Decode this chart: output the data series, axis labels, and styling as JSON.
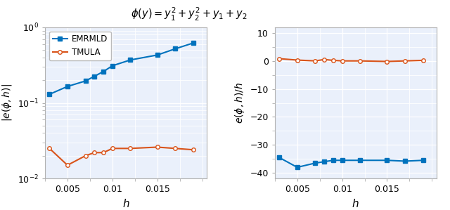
{
  "title": "$\\phi(y) = y_1^2 + y_2^2 + y_1 + y_2$",
  "h_values": [
    0.003,
    0.005,
    0.007,
    0.008,
    0.009,
    0.01,
    0.012,
    0.015,
    0.017,
    0.019
  ],
  "emrmld_abs": [
    0.13,
    0.165,
    0.195,
    0.225,
    0.26,
    0.31,
    0.37,
    0.43,
    0.52,
    0.62
  ],
  "tmula_abs": [
    0.025,
    0.015,
    0.02,
    0.022,
    0.022,
    0.025,
    0.025,
    0.026,
    0.025,
    0.024
  ],
  "emrmld_div_h": [
    -34.5,
    -38.0,
    -36.5,
    -36.0,
    -35.5,
    -35.5,
    -35.5,
    -35.5,
    -35.8,
    -35.5
  ],
  "tmula_div_h": [
    0.8,
    0.3,
    0.0,
    0.5,
    0.2,
    0.0,
    0.0,
    -0.2,
    0.0,
    0.2
  ],
  "blue_color": "#0072bd",
  "orange_color": "#d95319",
  "background_color": "#eaf0fb",
  "grid_color": "#ffffff",
  "spine_color": "#b0b0b0",
  "left_ylabel": "$|e(\\phi, h)|$",
  "right_ylabel": "$e(\\phi, h)/h$",
  "xlabel": "$h$",
  "legend_emrmld": "EMRMLD",
  "legend_tmula": "TMULA",
  "ylim_right": [
    -42,
    12
  ],
  "yticks_right": [
    -40,
    -30,
    -20,
    -10,
    0,
    10
  ],
  "xticks": [
    0.005,
    0.01,
    0.015
  ]
}
